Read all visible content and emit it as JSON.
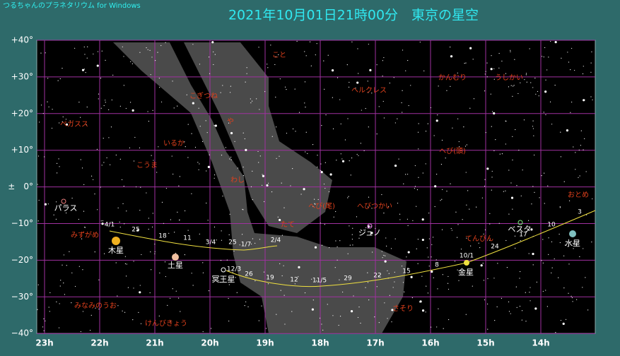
{
  "header": {
    "app_name": "つるちゃんのプラネタリウム for Windows",
    "title": "2021年10月01日21時00分　東京の星空"
  },
  "axis": {
    "declination": [
      "+40°",
      "+30°",
      "+20°",
      "+10°",
      "±　0°",
      "−10°",
      "−20°",
      "−30°",
      "−40°"
    ],
    "right_ascension": [
      "23h",
      "22h",
      "21h",
      "20h",
      "19h",
      "18h",
      "17h",
      "16h",
      "15h",
      "14h"
    ]
  },
  "constellations": [
    "こと",
    "ヘルクレス",
    "かんむり",
    "うしかい",
    "こぎつね",
    "や",
    "ペガスス",
    "いるか",
    "こうま",
    "へび(頭)",
    "わし",
    "へび(尾)",
    "へびつかい",
    "おとめ",
    "みずがめ",
    "たて",
    "てんびん",
    "さそり",
    "みなみのうお",
    "けんびきょう"
  ],
  "planets": [
    "パラス",
    "ジュノ",
    "ベスタ",
    "水星",
    "木星",
    "土星",
    "冥王星",
    "金星"
  ],
  "jupiter_path_dates": [
    "4/1",
    "25",
    "18",
    "11",
    "3/4",
    "25",
    "1/7",
    "2/4"
  ],
  "venus_path_dates": [
    "12/3",
    "26",
    "19",
    "12",
    "11/5",
    "29",
    "22",
    "15",
    "8",
    "10/1",
    "24",
    "17",
    "10",
    "3"
  ]
}
